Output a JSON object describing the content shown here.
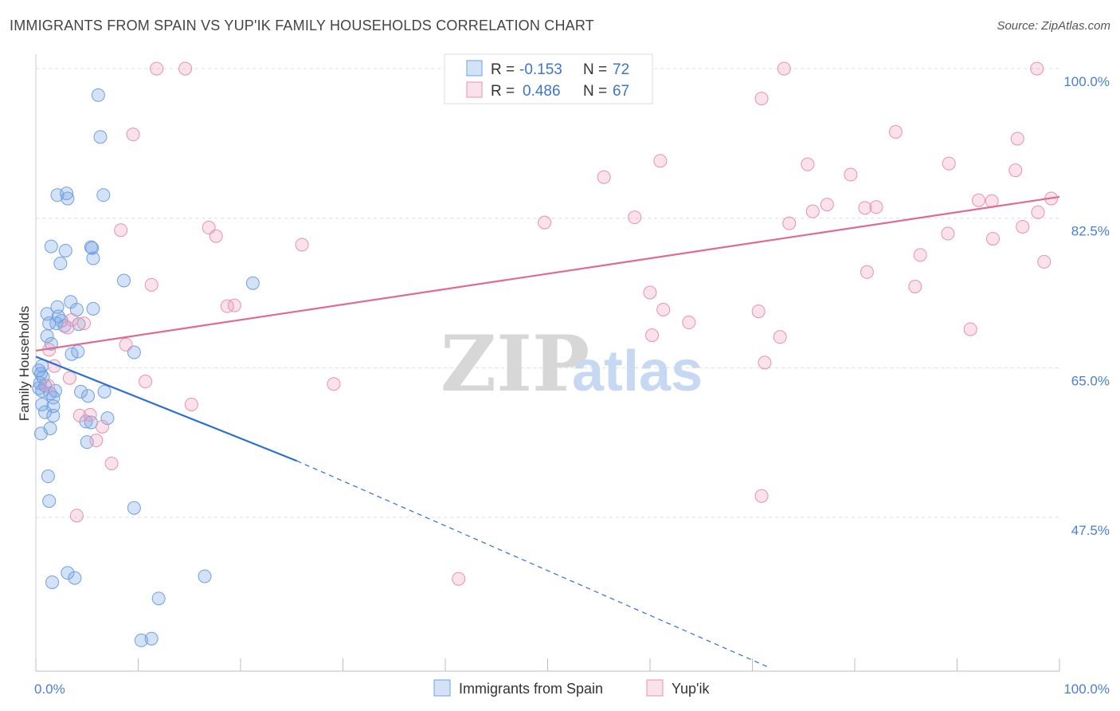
{
  "title": "IMMIGRANTS FROM SPAIN VS YUP'IK FAMILY HOUSEHOLDS CORRELATION CHART",
  "source": "Source: ZipAtlas.com",
  "watermark": {
    "zip": "ZIP",
    "atlas": "atlas"
  },
  "colors": {
    "blue": "#6fa0e0",
    "blue_fill": "rgba(120,165,230,0.32)",
    "pink": "#e892ad",
    "pink_fill": "rgba(240,160,185,0.30)",
    "blue_line": "#2f6fd0",
    "pink_line": "#e06a90"
  },
  "legend": {
    "r_label": "R =",
    "n_label": "N =",
    "rows": [
      {
        "r": "-0.153",
        "n": "72",
        "series": "blue"
      },
      {
        "r": "0.486",
        "n": "67",
        "series": "pink"
      }
    ]
  },
  "chart_data": {
    "type": "scatter",
    "title": "IMMIGRANTS FROM SPAIN VS YUP'IK FAMILY HOUSEHOLDS CORRELATION CHART",
    "xlabel": "",
    "ylabel": "Family Households",
    "xlim": [
      0,
      100
    ],
    "ylim": [
      29.5,
      101.5
    ],
    "x_tick_labels": [
      {
        "value": 0,
        "label": "0.0%"
      },
      {
        "value": 100,
        "label": "100.0%"
      }
    ],
    "y_tick_labels": [
      {
        "value": 100,
        "label": "100.0%"
      },
      {
        "value": 82.5,
        "label": "82.5%"
      },
      {
        "value": 65,
        "label": "65.0%"
      },
      {
        "value": 47.5,
        "label": "47.5%"
      }
    ],
    "series": [
      {
        "name": "Immigrants from Spain",
        "color": "blue",
        "trend": {
          "x0": 0,
          "y0": 66.3,
          "x1": 25.5,
          "y1": 54.1,
          "dashed_to_x": 71.5,
          "dashed_to_y": 30.0
        },
        "points": [
          [
            6.1,
            96.9
          ],
          [
            6.3,
            92.0
          ],
          [
            2.1,
            85.2
          ],
          [
            3.0,
            85.4
          ],
          [
            3.1,
            84.8
          ],
          [
            6.6,
            85.2
          ],
          [
            1.5,
            79.2
          ],
          [
            2.9,
            78.7
          ],
          [
            5.5,
            79.0
          ],
          [
            5.4,
            79.1
          ],
          [
            5.6,
            77.8
          ],
          [
            2.4,
            77.2
          ],
          [
            8.6,
            75.2
          ],
          [
            21.2,
            74.9
          ],
          [
            3.4,
            72.7
          ],
          [
            2.1,
            72.1
          ],
          [
            4.0,
            71.8
          ],
          [
            5.6,
            71.9
          ],
          [
            1.1,
            71.3
          ],
          [
            2.2,
            71.0
          ],
          [
            2.0,
            70.2
          ],
          [
            2.5,
            70.5
          ],
          [
            2.8,
            69.9
          ],
          [
            1.3,
            70.2
          ],
          [
            4.2,
            70.1
          ],
          [
            1.1,
            68.7
          ],
          [
            1.5,
            67.8
          ],
          [
            4.1,
            66.9
          ],
          [
            3.5,
            66.6
          ],
          [
            9.6,
            66.8
          ],
          [
            0.6,
            65.2
          ],
          [
            0.3,
            64.7
          ],
          [
            0.5,
            64.3
          ],
          [
            0.7,
            63.9
          ],
          [
            0.4,
            63.2
          ],
          [
            0.9,
            62.9
          ],
          [
            0.3,
            62.6
          ],
          [
            0.6,
            62.3
          ],
          [
            1.4,
            62.0
          ],
          [
            1.9,
            62.3
          ],
          [
            1.7,
            61.5
          ],
          [
            4.4,
            62.2
          ],
          [
            5.1,
            61.7
          ],
          [
            6.7,
            62.2
          ],
          [
            0.6,
            60.7
          ],
          [
            1.7,
            60.5
          ],
          [
            0.9,
            59.8
          ],
          [
            1.7,
            59.4
          ],
          [
            7.0,
            59.1
          ],
          [
            4.9,
            58.7
          ],
          [
            5.4,
            58.6
          ],
          [
            1.4,
            57.9
          ],
          [
            0.5,
            57.3
          ],
          [
            5.0,
            56.3
          ],
          [
            1.2,
            52.3
          ],
          [
            1.3,
            49.4
          ],
          [
            9.6,
            48.6
          ],
          [
            3.1,
            41.0
          ],
          [
            3.8,
            40.4
          ],
          [
            16.5,
            40.6
          ],
          [
            1.6,
            39.9
          ],
          [
            12.0,
            38.0
          ],
          [
            10.3,
            33.1
          ],
          [
            11.3,
            33.3
          ]
        ]
      },
      {
        "name": "Yup'ik",
        "color": "pink",
        "trend": {
          "x0": 0,
          "y0": 67.0,
          "x1": 100,
          "y1": 85.0
        },
        "points": [
          [
            11.8,
            100.0
          ],
          [
            14.6,
            100.0
          ],
          [
            73.1,
            100.0
          ],
          [
            97.8,
            100.0
          ],
          [
            70.9,
            96.5
          ],
          [
            9.5,
            92.3
          ],
          [
            84.0,
            92.6
          ],
          [
            95.9,
            91.8
          ],
          [
            75.4,
            88.8
          ],
          [
            79.6,
            87.6
          ],
          [
            89.2,
            88.9
          ],
          [
            95.7,
            88.1
          ],
          [
            61.0,
            89.2
          ],
          [
            55.5,
            87.3
          ],
          [
            99.2,
            84.8
          ],
          [
            77.3,
            84.1
          ],
          [
            81.0,
            83.7
          ],
          [
            82.1,
            83.8
          ],
          [
            92.1,
            84.6
          ],
          [
            93.4,
            84.5
          ],
          [
            75.9,
            83.3
          ],
          [
            97.9,
            83.2
          ],
          [
            58.5,
            82.6
          ],
          [
            73.6,
            81.9
          ],
          [
            49.7,
            82.0
          ],
          [
            96.4,
            81.5
          ],
          [
            16.9,
            81.4
          ],
          [
            8.3,
            81.1
          ],
          [
            17.6,
            80.4
          ],
          [
            89.1,
            80.7
          ],
          [
            93.5,
            80.1
          ],
          [
            26.0,
            79.4
          ],
          [
            86.4,
            78.2
          ],
          [
            98.5,
            77.4
          ],
          [
            81.2,
            76.2
          ],
          [
            85.9,
            74.5
          ],
          [
            11.3,
            74.7
          ],
          [
            60.0,
            73.8
          ],
          [
            19.4,
            72.3
          ],
          [
            18.7,
            72.2
          ],
          [
            61.3,
            71.8
          ],
          [
            70.6,
            71.6
          ],
          [
            63.8,
            70.3
          ],
          [
            3.5,
            70.6
          ],
          [
            4.7,
            70.2
          ],
          [
            3.1,
            69.7
          ],
          [
            91.3,
            69.5
          ],
          [
            60.2,
            68.8
          ],
          [
            72.7,
            68.6
          ],
          [
            8.8,
            67.7
          ],
          [
            1.3,
            67.1
          ],
          [
            71.2,
            65.6
          ],
          [
            1.8,
            65.2
          ],
          [
            3.3,
            63.8
          ],
          [
            10.7,
            63.4
          ],
          [
            29.1,
            63.1
          ],
          [
            1.2,
            62.9
          ],
          [
            15.2,
            60.7
          ],
          [
            4.3,
            59.4
          ],
          [
            5.3,
            59.5
          ],
          [
            6.5,
            58.1
          ],
          [
            5.9,
            56.5
          ],
          [
            7.4,
            53.8
          ],
          [
            70.9,
            50.0
          ],
          [
            4.0,
            47.7
          ],
          [
            41.3,
            40.3
          ]
        ]
      }
    ]
  },
  "bottom_legend": [
    {
      "label": "Immigrants from Spain",
      "color": "blue"
    },
    {
      "label": "Yup'ik",
      "color": "pink"
    }
  ]
}
